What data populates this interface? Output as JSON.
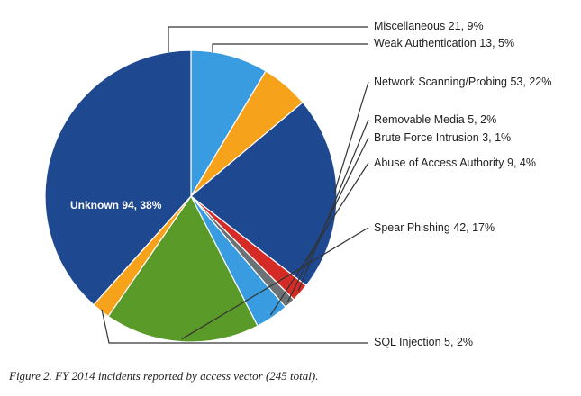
{
  "caption": "Figure 2. FY 2014 incidents reported by access vector (245 total).",
  "chart_data": {
    "type": "pie",
    "title": "",
    "total": 245,
    "slices": [
      {
        "label": "Miscellaneous",
        "value": 21,
        "percent": 9,
        "display": "Miscellaneous 21, 9%",
        "color": "#3a9ce0"
      },
      {
        "label": "Weak Authentication",
        "value": 13,
        "percent": 5,
        "display": "Weak Authentication 13, 5%",
        "color": "#f7a21b"
      },
      {
        "label": "Network Scanning/Probing",
        "value": 53,
        "percent": 22,
        "display": "Network Scanning/Probing 53, 22%",
        "color": "#1e4890"
      },
      {
        "label": "Removable Media",
        "value": 5,
        "percent": 2,
        "display": "Removable Media 5, 2%",
        "color": "#d52b27"
      },
      {
        "label": "Brute Force Intrusion",
        "value": 3,
        "percent": 1,
        "display": "Brute Force Intrusion 3, 1%",
        "color": "#6c7176"
      },
      {
        "label": "Abuse of Access Authority",
        "value": 9,
        "percent": 4,
        "display": "Abuse of Access Authority 9, 4%",
        "color": "#3a9ce0"
      },
      {
        "label": "Spear Phishing",
        "value": 42,
        "percent": 17,
        "display": "Spear Phishing 42, 17%",
        "color": "#5a9a28"
      },
      {
        "label": "SQL Injection",
        "value": 5,
        "percent": 2,
        "display": "SQL Injection 5, 2%",
        "color": "#f7a21b"
      },
      {
        "label": "Unknown",
        "value": 94,
        "percent": 38,
        "display": "Unknown 94, 38%",
        "color": "#1e4890"
      }
    ],
    "legend": "none"
  }
}
